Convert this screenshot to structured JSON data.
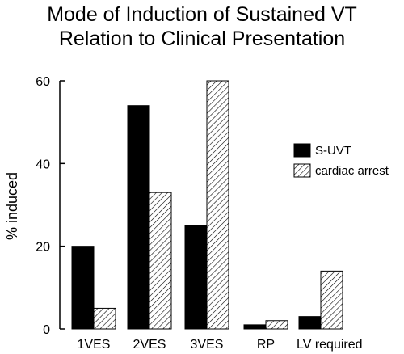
{
  "chart_data": {
    "type": "bar",
    "title_line1": "Mode of Induction of Sustained VT",
    "title_line2": "Relation to Clinical Presentation",
    "xlabel": "",
    "ylabel": "% induced",
    "ylim": [
      0,
      60
    ],
    "yticks": [
      "0",
      "20",
      "40",
      "60"
    ],
    "categories": [
      "1VES",
      "2VES",
      "3VES",
      "RP",
      "LV required"
    ],
    "series": [
      {
        "name": "S-UVT",
        "values": [
          20,
          54,
          25,
          1,
          3
        ],
        "color": "#000000",
        "pattern": "solid"
      },
      {
        "name": "cardiac arrest",
        "values": [
          5,
          33,
          60,
          2,
          14
        ],
        "color": "#000000",
        "pattern": "hatched"
      }
    ],
    "legend_position": "right",
    "grid": false
  }
}
